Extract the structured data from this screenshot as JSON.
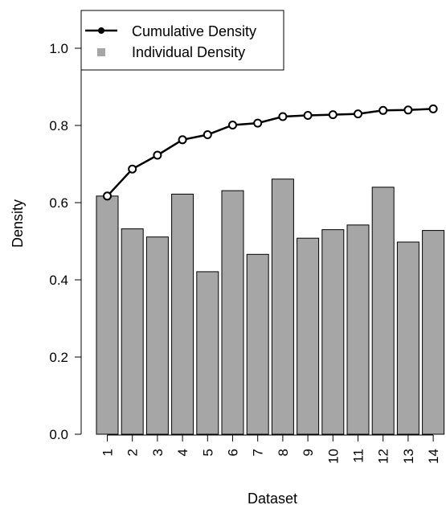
{
  "chart_data": {
    "type": "bar",
    "xlabel": "Dataset",
    "ylabel": "Density",
    "categories": [
      "1",
      "2",
      "3",
      "4",
      "5",
      "6",
      "7",
      "8",
      "9",
      "10",
      "11",
      "12",
      "13",
      "14"
    ],
    "ylim": [
      0.0,
      1.0
    ],
    "yticks": [
      "0.0",
      "0.2",
      "0.4",
      "0.6",
      "0.8",
      "1.0"
    ],
    "series": [
      {
        "name": "Individual Density",
        "kind": "bar",
        "color": "#a6a6a6",
        "values": [
          0.617,
          0.532,
          0.511,
          0.622,
          0.421,
          0.631,
          0.466,
          0.661,
          0.508,
          0.53,
          0.542,
          0.64,
          0.498,
          0.528
        ]
      },
      {
        "name": "Cumulative Density",
        "kind": "line",
        "color": "#000000",
        "values": [
          0.617,
          0.687,
          0.723,
          0.763,
          0.776,
          0.801,
          0.806,
          0.823,
          0.826,
          0.828,
          0.83,
          0.839,
          0.84,
          0.843
        ]
      }
    ],
    "legend": {
      "placement": "top-left",
      "entries": [
        "Cumulative Density",
        "Individual Density"
      ]
    },
    "grid": false
  }
}
